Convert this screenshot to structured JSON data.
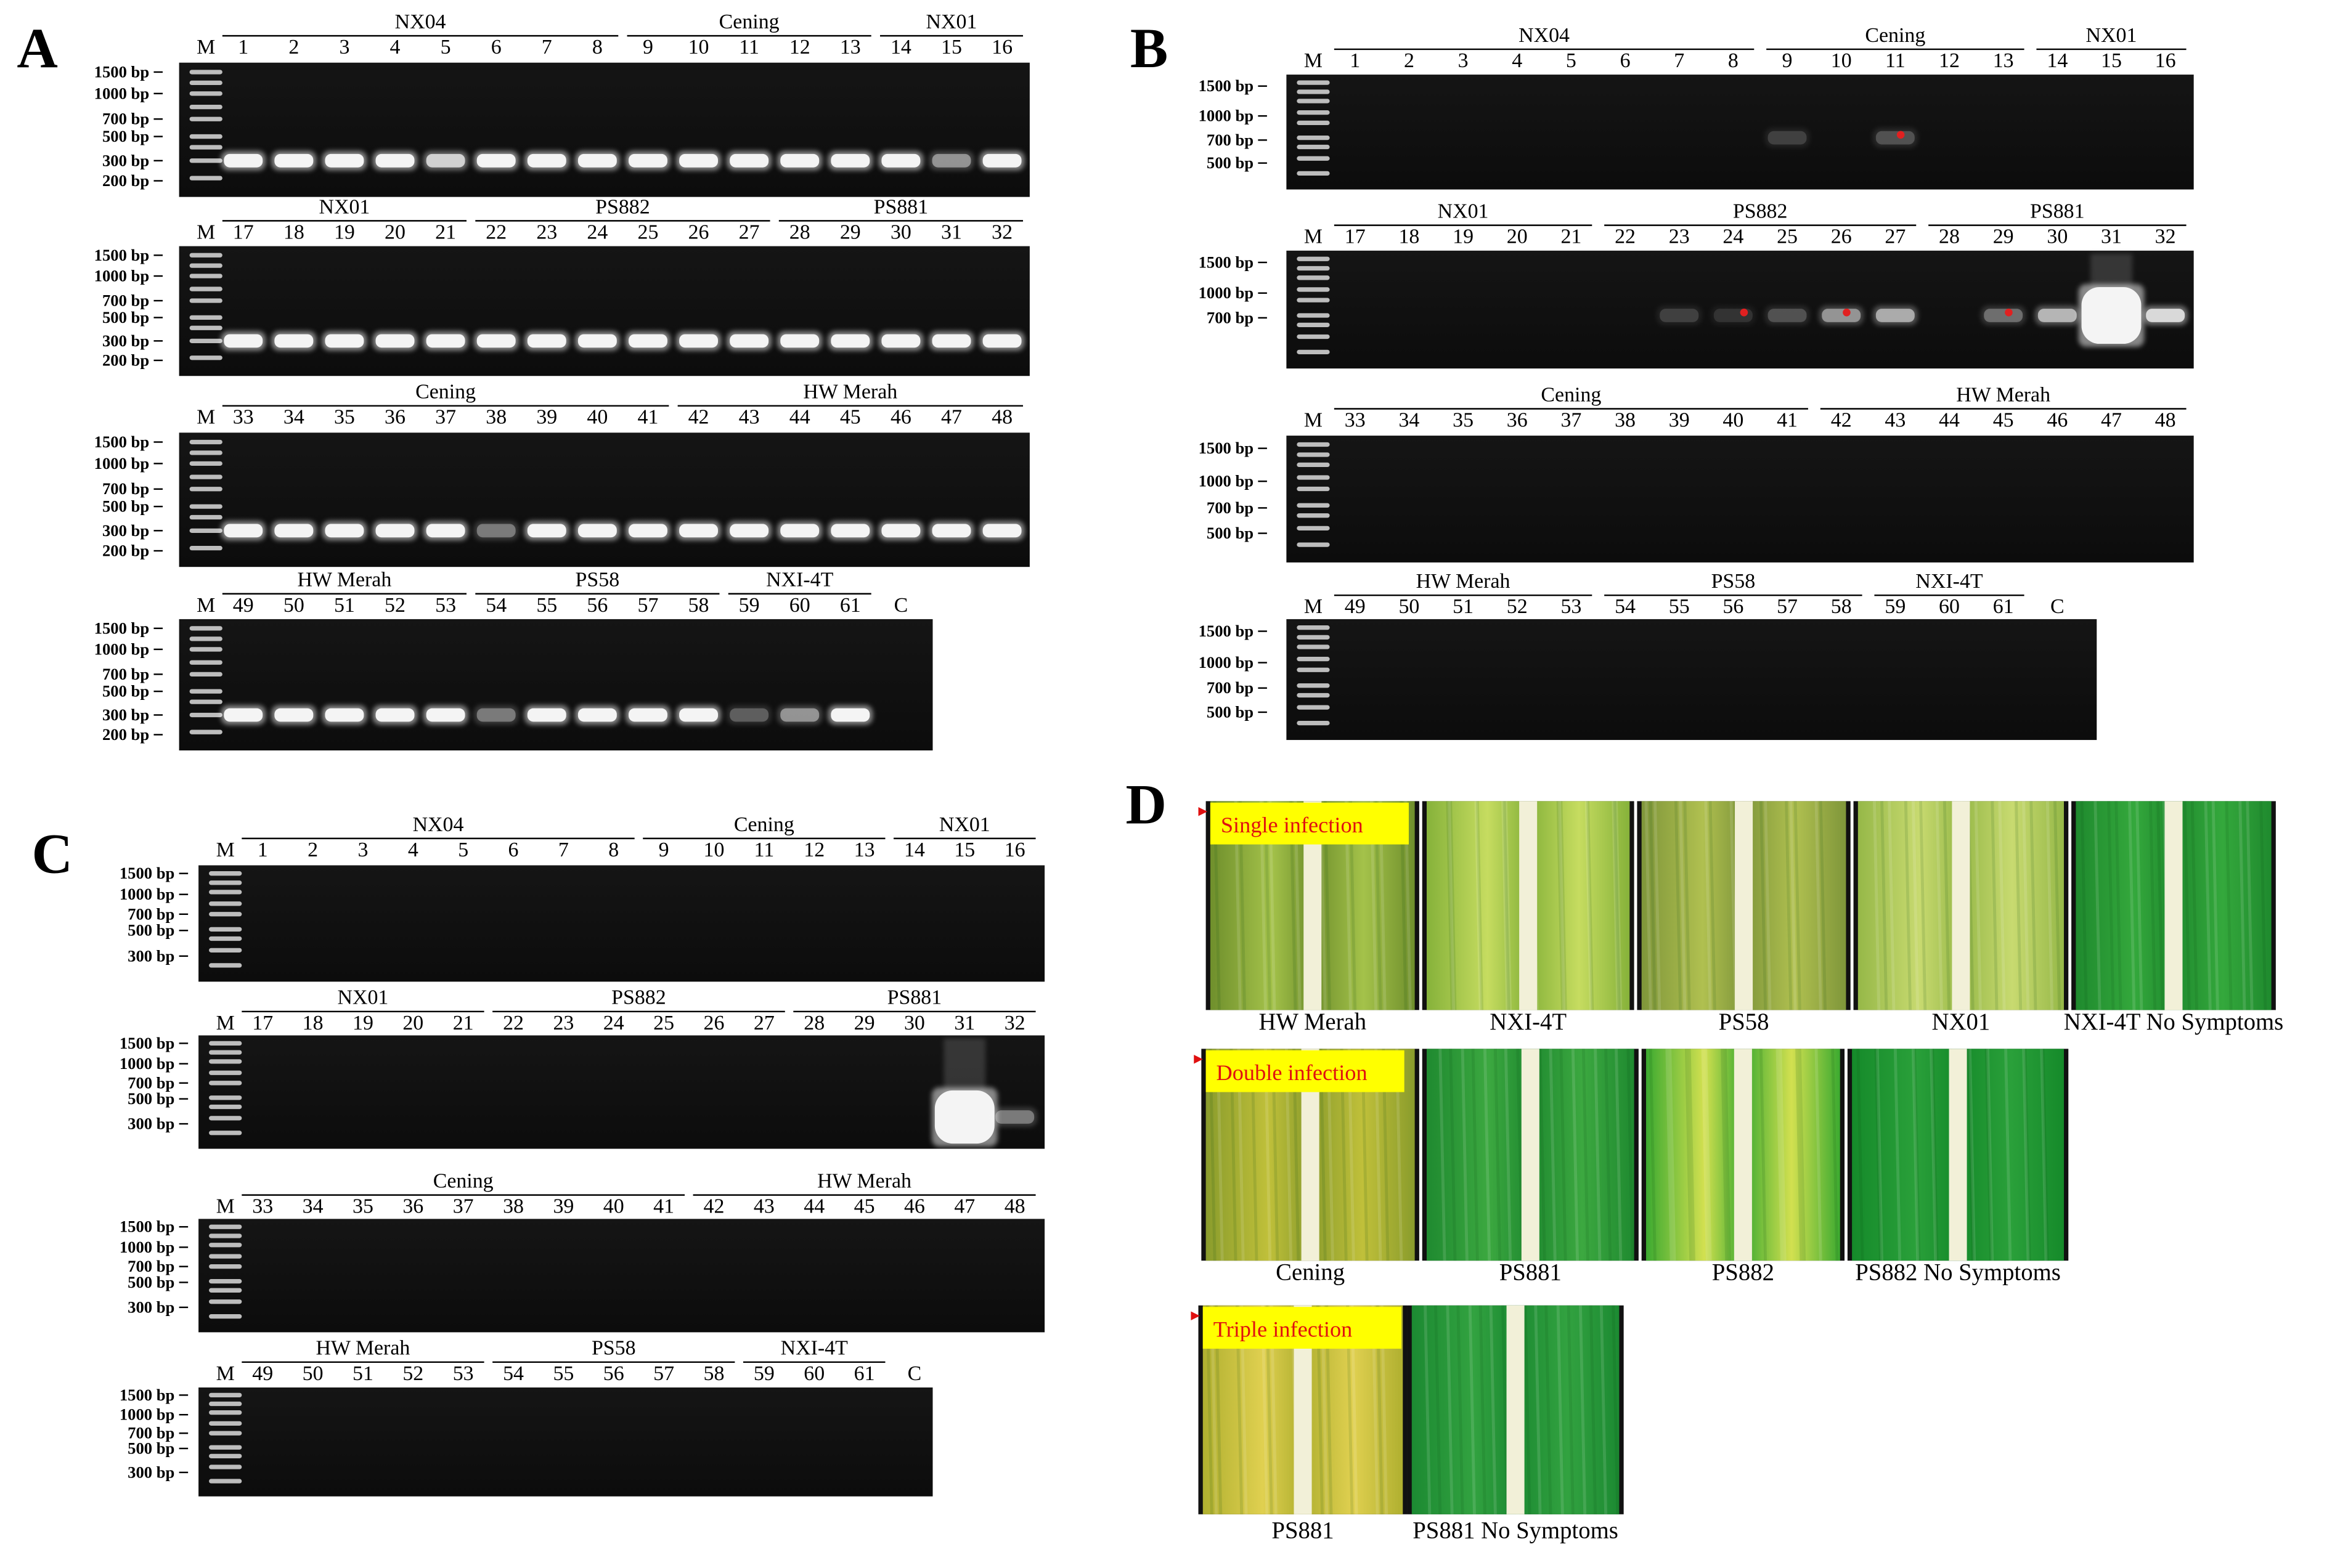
{
  "panels": [
    {
      "label": "A",
      "rows": [
        {
          "marker": "M",
          "ladder": [
            "1500 bp",
            "1000 bp",
            "700 bp",
            "500 bp",
            "300 bp",
            "200 bp"
          ],
          "groups": [
            {
              "name": "NX04",
              "lanes": [
                "1",
                "2",
                "3",
                "4",
                "5",
                "6",
                "7",
                "8"
              ]
            },
            {
              "name": "Cening",
              "lanes": [
                "9",
                "10",
                "11",
                "12",
                "13"
              ]
            },
            {
              "name": "NX01",
              "lanes": [
                "14",
                "15",
                "16"
              ]
            }
          ]
        },
        {
          "marker": "M",
          "ladder": [
            "1500 bp",
            "1000 bp",
            "700 bp",
            "500 bp",
            "300 bp",
            "200 bp"
          ],
          "groups": [
            {
              "name": "NX01",
              "lanes": [
                "17",
                "18",
                "19",
                "20",
                "21"
              ]
            },
            {
              "name": "PS882",
              "lanes": [
                "22",
                "23",
                "24",
                "25",
                "26",
                "27"
              ]
            },
            {
              "name": "PS881",
              "lanes": [
                "28",
                "29",
                "30",
                "31",
                "32"
              ]
            }
          ]
        },
        {
          "marker": "M",
          "ladder": [
            "1500 bp",
            "1000 bp",
            "700 bp",
            "500 bp",
            "300 bp",
            "200 bp"
          ],
          "groups": [
            {
              "name": "Cening",
              "lanes": [
                "33",
                "34",
                "35",
                "36",
                "37",
                "38",
                "39",
                "40",
                "41"
              ]
            },
            {
              "name": "HW Merah",
              "lanes": [
                "42",
                "43",
                "44",
                "45",
                "46",
                "47",
                "48"
              ]
            }
          ]
        },
        {
          "marker": "M",
          "ladder": [
            "1500 bp",
            "1000 bp",
            "700 bp",
            "500 bp",
            "300 bp",
            "200 bp"
          ],
          "groups": [
            {
              "name": "HW Merah",
              "lanes": [
                "49",
                "50",
                "51",
                "52",
                "53"
              ]
            },
            {
              "name": "PS58",
              "lanes": [
                "54",
                "55",
                "56",
                "57",
                "58"
              ]
            },
            {
              "name": "NXI-4T",
              "lanes": [
                "59",
                "60",
                "61"
              ]
            }
          ],
          "control": "C"
        }
      ]
    },
    {
      "label": "B",
      "rows": [
        {
          "marker": "M",
          "ladder": [
            "1500 bp",
            "1000 bp",
            "700 bp",
            "500 bp"
          ],
          "groups": [
            {
              "name": "NX04",
              "lanes": [
                "1",
                "2",
                "3",
                "4",
                "5",
                "6",
                "7",
                "8"
              ]
            },
            {
              "name": "Cening",
              "lanes": [
                "9",
                "10",
                "11",
                "12",
                "13"
              ]
            },
            {
              "name": "NX01",
              "lanes": [
                "14",
                "15",
                "16"
              ]
            }
          ]
        },
        {
          "marker": "M",
          "ladder": [
            "1500 bp",
            "1000 bp",
            "700 bp"
          ],
          "groups": [
            {
              "name": "NX01",
              "lanes": [
                "17",
                "18",
                "19",
                "20",
                "21"
              ]
            },
            {
              "name": "PS882",
              "lanes": [
                "22",
                "23",
                "24",
                "25",
                "26",
                "27"
              ]
            },
            {
              "name": "PS881",
              "lanes": [
                "28",
                "29",
                "30",
                "31",
                "32"
              ]
            }
          ]
        },
        {
          "marker": "M",
          "ladder": [
            "1500 bp",
            "1000 bp",
            "700 bp",
            "500 bp"
          ],
          "groups": [
            {
              "name": "Cening",
              "lanes": [
                "33",
                "34",
                "35",
                "36",
                "37",
                "38",
                "39",
                "40",
                "41"
              ]
            },
            {
              "name": "HW Merah",
              "lanes": [
                "42",
                "43",
                "44",
                "45",
                "46",
                "47",
                "48"
              ]
            }
          ]
        },
        {
          "marker": "M",
          "ladder": [
            "1500 bp",
            "1000 bp",
            "700 bp",
            "500 bp"
          ],
          "groups": [
            {
              "name": "HW Merah",
              "lanes": [
                "49",
                "50",
                "51",
                "52",
                "53"
              ]
            },
            {
              "name": "PS58",
              "lanes": [
                "54",
                "55",
                "56",
                "57",
                "58"
              ]
            },
            {
              "name": "NXI-4T",
              "lanes": [
                "59",
                "60",
                "61"
              ]
            }
          ],
          "control": "C"
        }
      ]
    },
    {
      "label": "C",
      "rows": [
        {
          "marker": "M",
          "ladder": [
            "1500 bp",
            "1000 bp",
            "700 bp",
            "500 bp",
            "300 bp"
          ],
          "groups": [
            {
              "name": "NX04",
              "lanes": [
                "1",
                "2",
                "3",
                "4",
                "5",
                "6",
                "7",
                "8"
              ]
            },
            {
              "name": "Cening",
              "lanes": [
                "9",
                "10",
                "11",
                "12",
                "13"
              ]
            },
            {
              "name": "NX01",
              "lanes": [
                "14",
                "15",
                "16"
              ]
            }
          ]
        },
        {
          "marker": "M",
          "ladder": [
            "1500 bp",
            "1000 bp",
            "700 bp",
            "500 bp",
            "300 bp"
          ],
          "groups": [
            {
              "name": "NX01",
              "lanes": [
                "17",
                "18",
                "19",
                "20",
                "21"
              ]
            },
            {
              "name": "PS882",
              "lanes": [
                "22",
                "23",
                "24",
                "25",
                "26",
                "27"
              ]
            },
            {
              "name": "PS881",
              "lanes": [
                "28",
                "29",
                "30",
                "31",
                "32"
              ]
            }
          ]
        },
        {
          "marker": "M",
          "ladder": [
            "1500 bp",
            "1000 bp",
            "700 bp",
            "500 bp",
            "300 bp"
          ],
          "groups": [
            {
              "name": "Cening",
              "lanes": [
                "33",
                "34",
                "35",
                "36",
                "37",
                "38",
                "39",
                "40",
                "41"
              ]
            },
            {
              "name": "HW Merah",
              "lanes": [
                "42",
                "43",
                "44",
                "45",
                "46",
                "47",
                "48"
              ]
            }
          ]
        },
        {
          "marker": "M",
          "ladder": [
            "1500 bp",
            "1000 bp",
            "700 bp",
            "500 bp",
            "300 bp"
          ],
          "groups": [
            {
              "name": "HW Merah",
              "lanes": [
                "49",
                "50",
                "51",
                "52",
                "53"
              ]
            },
            {
              "name": "PS58",
              "lanes": [
                "54",
                "55",
                "56",
                "57",
                "58"
              ]
            },
            {
              "name": "NXI-4T",
              "lanes": [
                "59",
                "60",
                "61"
              ]
            }
          ],
          "control": "C"
        }
      ]
    }
  ],
  "panel_d": {
    "label": "D",
    "rows": [
      {
        "tag": "Single infection",
        "captions": [
          "HW Merah",
          "NXI-4T",
          "PS58",
          "NX01",
          "NXI-4T No Symptoms"
        ]
      },
      {
        "tag": "Double infection",
        "captions": [
          "Cening",
          "PS881",
          "PS882",
          "PS882 No Symptoms"
        ]
      },
      {
        "tag": "Triple infection",
        "captions": [
          "PS881",
          "PS881 No Symptoms"
        ]
      }
    ]
  }
}
